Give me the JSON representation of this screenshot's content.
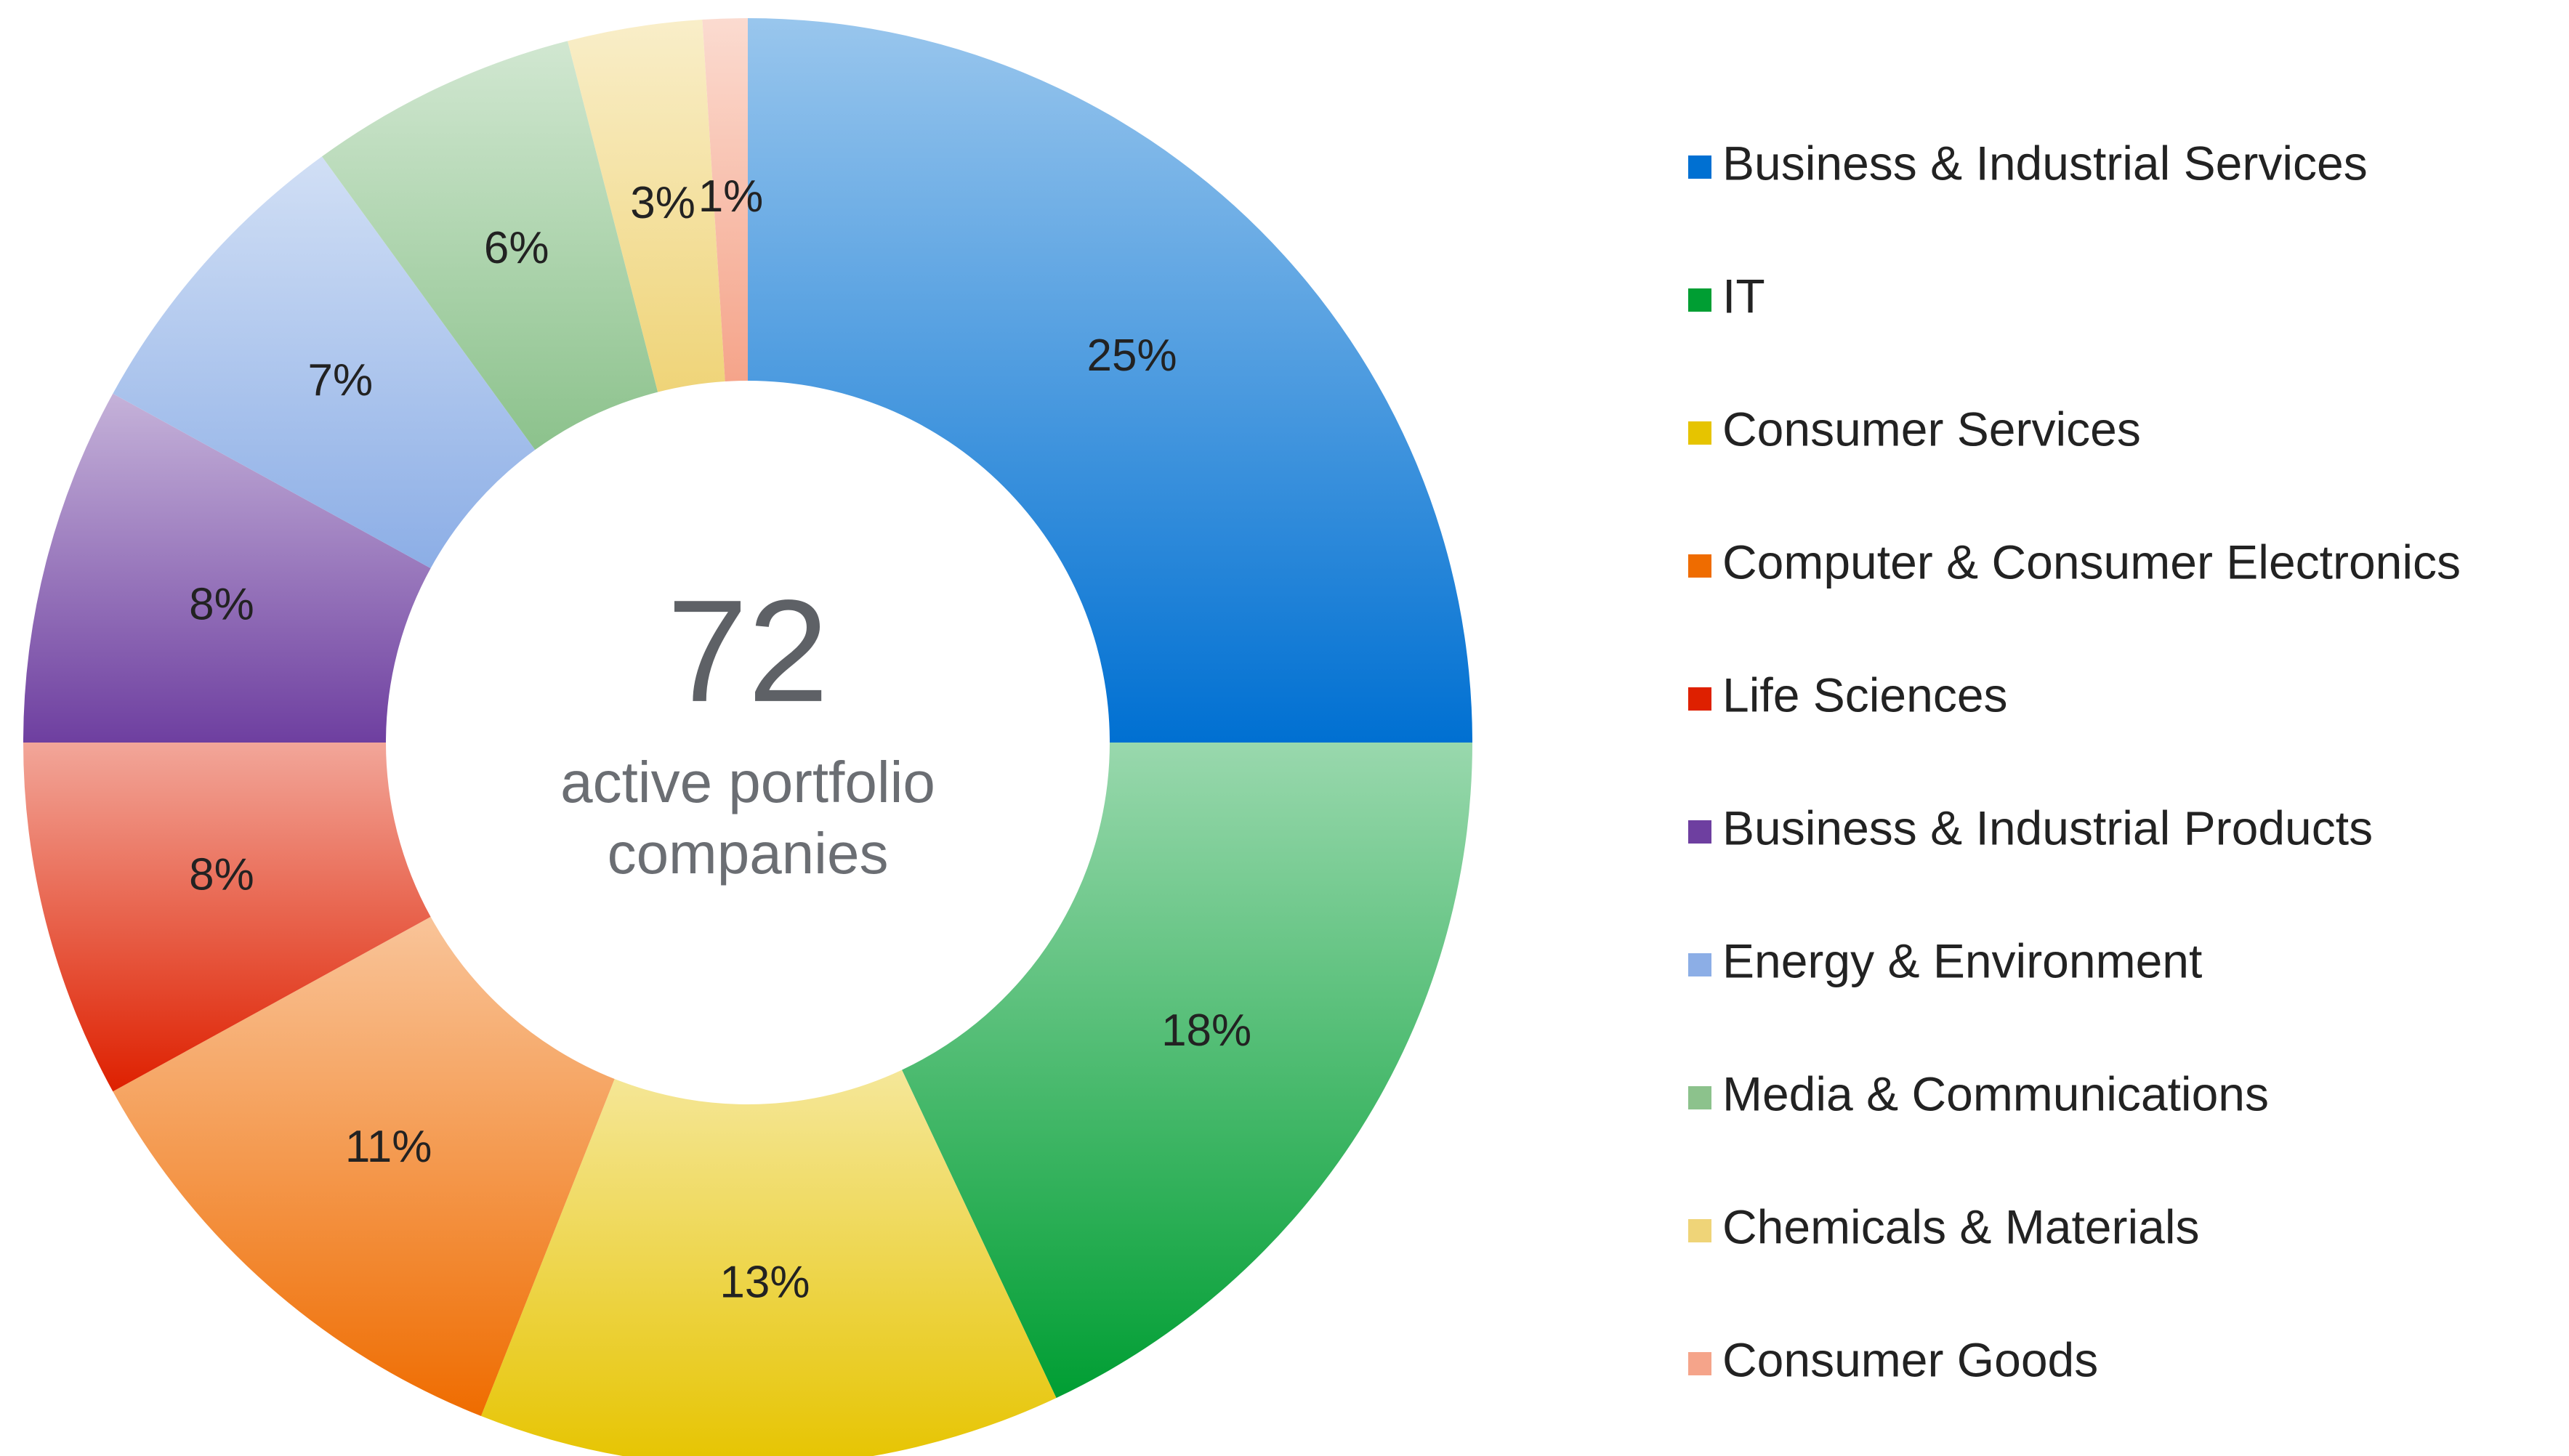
{
  "chart_data": {
    "type": "donut",
    "center_value": 72,
    "center_label": [
      "active portfolio",
      "companies"
    ],
    "categories": [
      "Business & Industrial Services",
      "IT",
      "Consumer Services",
      "Computer & Consumer Electronics",
      "Life Sciences",
      "Business & Industrial Products",
      "Energy & Environment",
      "Media & Communications",
      "Chemicals & Materials",
      "Consumer Goods"
    ],
    "values": [
      25,
      18,
      13,
      11,
      8,
      8,
      7,
      6,
      3,
      1
    ],
    "value_labels": [
      "25%",
      "18%",
      "13%",
      "11%",
      "8%",
      "8%",
      "7%",
      "6%",
      "3%",
      "1%"
    ],
    "colors": [
      "#0070d2",
      "#009e33",
      "#e6c400",
      "#ef6c00",
      "#de2000",
      "#6e3fa0",
      "#8caee6",
      "#8cc28c",
      "#efd478",
      "#f5a48a"
    ],
    "legend": "right"
  }
}
